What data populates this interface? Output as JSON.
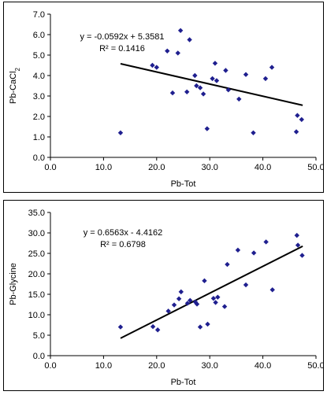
{
  "chart_data": [
    {
      "type": "scatter",
      "xlabel": "Pb-Tot",
      "ylabel_main": "Pb-CaCl",
      "ylabel_subscript": "2",
      "xlim": [
        0,
        50
      ],
      "ylim": [
        0,
        7
      ],
      "xticks": [
        0,
        10,
        20,
        30,
        40,
        50
      ],
      "yticks": [
        0,
        1,
        2,
        3,
        4,
        5,
        6,
        7
      ],
      "xtick_labels": [
        "0.0",
        "10.0",
        "20.0",
        "30.0",
        "40.0",
        "50.0"
      ],
      "ytick_labels": [
        "0.0",
        "1.0",
        "2.0",
        "3.0",
        "4.0",
        "5.0",
        "6.0",
        "7.0"
      ],
      "grid": false,
      "marker_color": "#1f1f8f",
      "equation": "y = -0.0592x + 5.3581",
      "r_squared": "R² = 0.1416",
      "trendline": {
        "slope": -0.0592,
        "intercept": 5.3581,
        "x_range": [
          13.2,
          47.5
        ]
      },
      "points": [
        {
          "x": 13.2,
          "y": 1.2
        },
        {
          "x": 19.2,
          "y": 4.5
        },
        {
          "x": 20.0,
          "y": 4.4
        },
        {
          "x": 22.0,
          "y": 5.2
        },
        {
          "x": 23.0,
          "y": 3.15
        },
        {
          "x": 24.0,
          "y": 5.1
        },
        {
          "x": 24.5,
          "y": 6.2
        },
        {
          "x": 25.7,
          "y": 3.2
        },
        {
          "x": 26.2,
          "y": 5.75
        },
        {
          "x": 27.2,
          "y": 4.0
        },
        {
          "x": 27.5,
          "y": 3.5
        },
        {
          "x": 28.2,
          "y": 3.4
        },
        {
          "x": 28.8,
          "y": 3.1
        },
        {
          "x": 29.5,
          "y": 1.4
        },
        {
          "x": 30.5,
          "y": 3.85
        },
        {
          "x": 31.0,
          "y": 4.6
        },
        {
          "x": 31.3,
          "y": 3.75
        },
        {
          "x": 33.0,
          "y": 4.25
        },
        {
          "x": 33.5,
          "y": 3.3
        },
        {
          "x": 35.5,
          "y": 2.85
        },
        {
          "x": 36.8,
          "y": 4.05
        },
        {
          "x": 38.2,
          "y": 1.2
        },
        {
          "x": 40.5,
          "y": 3.85
        },
        {
          "x": 41.7,
          "y": 4.4
        },
        {
          "x": 46.3,
          "y": 1.25
        },
        {
          "x": 46.5,
          "y": 2.05
        },
        {
          "x": 47.3,
          "y": 1.85
        }
      ]
    },
    {
      "type": "scatter",
      "xlabel": "Pb-Tot",
      "ylabel_main": "Pb-Glycine",
      "ylabel_subscript": "",
      "xlim": [
        0,
        50
      ],
      "ylim": [
        0,
        35
      ],
      "xticks": [
        0,
        10,
        20,
        30,
        40,
        50
      ],
      "yticks": [
        0,
        5,
        10,
        15,
        20,
        25,
        30,
        35
      ],
      "xtick_labels": [
        "0.0",
        "10.0",
        "20.0",
        "30.0",
        "40.0",
        "50.0"
      ],
      "ytick_labels": [
        "0.0",
        "5.0",
        "10.0",
        "15.0",
        "20.0",
        "25.0",
        "30.0",
        "35.0"
      ],
      "grid": false,
      "marker_color": "#1f1f8f",
      "equation": "y = 0.6563x - 4.4162",
      "r_squared": "R² = 0.6798",
      "trendline": {
        "slope": 0.6563,
        "intercept": -4.4162,
        "x_range": [
          13.2,
          47.5
        ]
      },
      "points": [
        {
          "x": 13.2,
          "y": 7.0
        },
        {
          "x": 19.3,
          "y": 7.1
        },
        {
          "x": 20.2,
          "y": 6.3
        },
        {
          "x": 22.2,
          "y": 10.9
        },
        {
          "x": 23.3,
          "y": 12.4
        },
        {
          "x": 24.2,
          "y": 13.9
        },
        {
          "x": 24.6,
          "y": 15.6
        },
        {
          "x": 25.8,
          "y": 12.8
        },
        {
          "x": 26.3,
          "y": 13.5
        },
        {
          "x": 27.3,
          "y": 13.1
        },
        {
          "x": 27.6,
          "y": 12.6
        },
        {
          "x": 28.2,
          "y": 7.0
        },
        {
          "x": 29.0,
          "y": 18.3
        },
        {
          "x": 29.6,
          "y": 7.7
        },
        {
          "x": 30.7,
          "y": 14.0
        },
        {
          "x": 31.1,
          "y": 13.0
        },
        {
          "x": 31.5,
          "y": 14.3
        },
        {
          "x": 32.8,
          "y": 12.0
        },
        {
          "x": 33.3,
          "y": 22.3
        },
        {
          "x": 35.3,
          "y": 25.8
        },
        {
          "x": 36.8,
          "y": 17.3
        },
        {
          "x": 38.3,
          "y": 25.1
        },
        {
          "x": 40.6,
          "y": 27.8
        },
        {
          "x": 41.8,
          "y": 16.1
        },
        {
          "x": 46.4,
          "y": 29.4
        },
        {
          "x": 46.6,
          "y": 27.0
        },
        {
          "x": 47.4,
          "y": 24.5
        }
      ]
    }
  ]
}
